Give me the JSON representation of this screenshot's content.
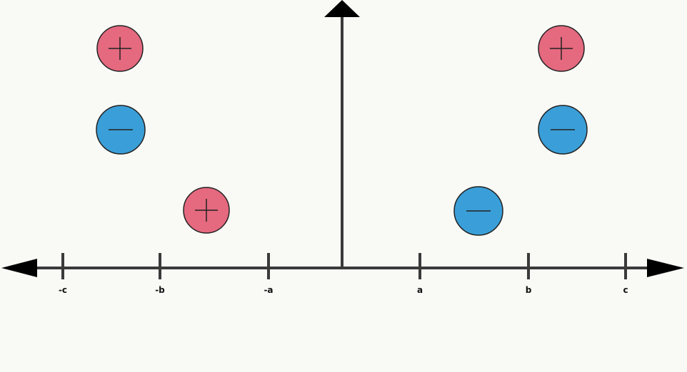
{
  "axis": {
    "color": "#3a3a3a",
    "tick_labels": [
      "-c",
      "-b",
      "-a",
      "a",
      "b",
      "c"
    ]
  },
  "charges": [
    {
      "sign": "+",
      "color": "#e5697f"
    },
    {
      "sign": "−",
      "color": "#3a9fd8"
    },
    {
      "sign": "+",
      "color": "#e5697f"
    },
    {
      "sign": "+",
      "color": "#e5697f"
    },
    {
      "sign": "−",
      "color": "#3a9fd8"
    },
    {
      "sign": "−",
      "color": "#3a9fd8"
    }
  ]
}
